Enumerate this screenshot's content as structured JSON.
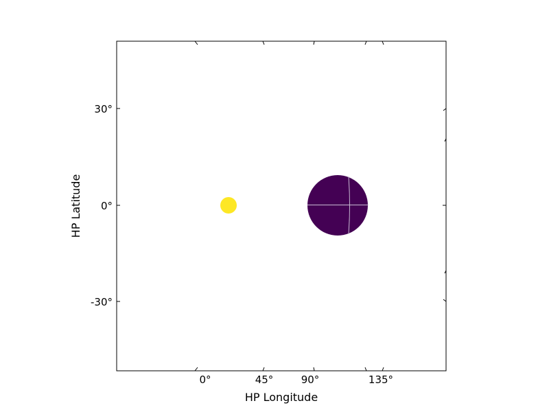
{
  "chart_data": {
    "type": "scatter",
    "projection": "helioprojective",
    "xlabel": "HP Longitude",
    "ylabel": "HP Latitude",
    "x_ticks": [
      {
        "label": "0°"
      },
      {
        "label": "45°"
      },
      {
        "label": "90°"
      },
      {
        "label": "135°"
      }
    ],
    "y_ticks": [
      {
        "value": 30,
        "label": "30°"
      },
      {
        "value": 0,
        "label": "0°"
      },
      {
        "value": -30,
        "label": "-30°"
      }
    ],
    "ylim": [
      -52,
      51
    ],
    "grid": false,
    "series": [
      {
        "shape": "small-disk",
        "color": "#fde725",
        "lon": 17,
        "lat": 0,
        "radius_deg": 4
      },
      {
        "shape": "large-disk",
        "color": "#440154",
        "lon": 105,
        "lat": 0,
        "radius_deg": 10
      }
    ]
  }
}
